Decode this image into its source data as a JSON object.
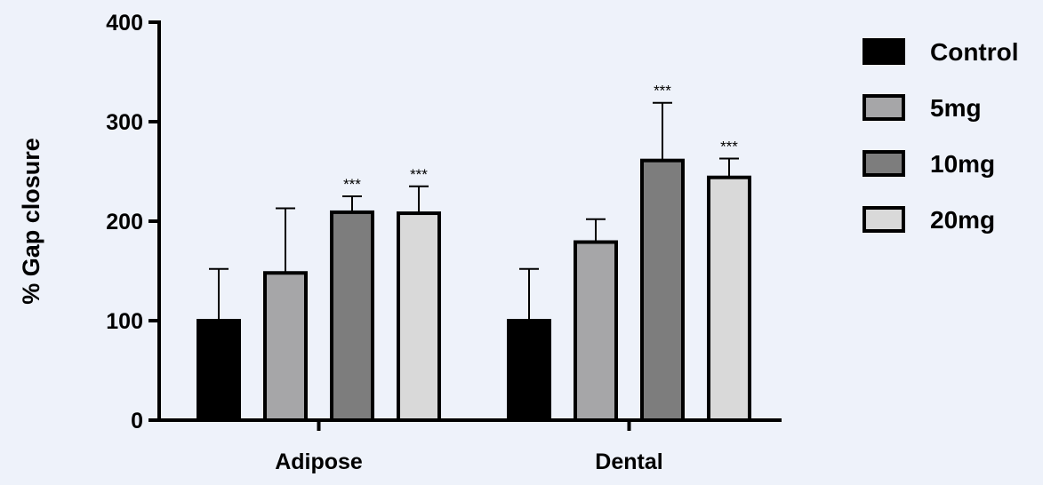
{
  "chart_data": {
    "type": "bar",
    "ylabel": "% Gap closure",
    "xlabel": "",
    "ylim": [
      0,
      400
    ],
    "yticks": [
      0,
      100,
      200,
      300,
      400
    ],
    "categories": [
      "Adipose",
      "Dental"
    ],
    "legend_position": "right",
    "grid": false,
    "series": [
      {
        "name": "Control",
        "color": "#000000",
        "values": [
          100,
          100
        ],
        "errors": [
          52,
          52
        ],
        "significance": [
          "",
          ""
        ]
      },
      {
        "name": "5mg",
        "color": "#a6a6a8",
        "values": [
          148,
          179
        ],
        "errors": [
          65,
          23
        ],
        "significance": [
          "",
          ""
        ]
      },
      {
        "name": "10mg",
        "color": "#7d7d7d",
        "values": [
          209,
          261
        ],
        "errors": [
          16,
          58
        ],
        "significance": [
          "***",
          "***"
        ]
      },
      {
        "name": "20mg",
        "color": "#d9d9d9",
        "values": [
          208,
          244
        ],
        "errors": [
          27,
          19
        ],
        "significance": [
          "***",
          "***"
        ]
      }
    ]
  }
}
